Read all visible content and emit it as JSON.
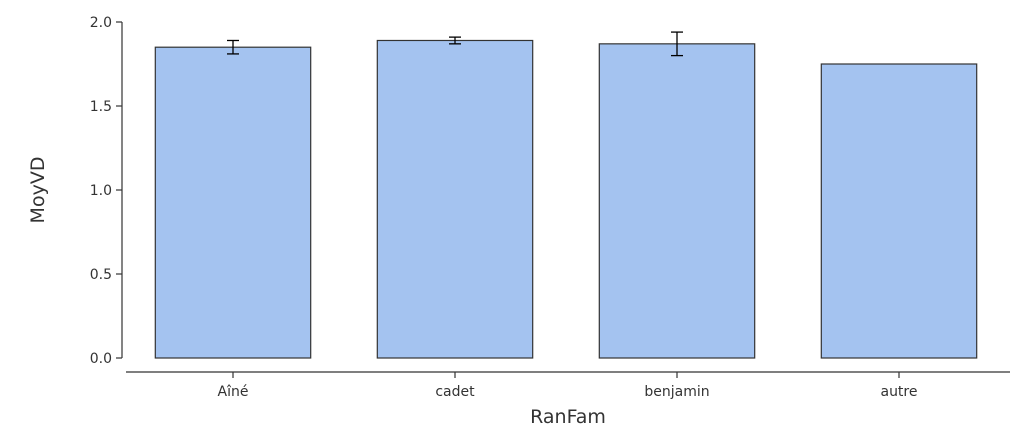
{
  "chart_data": {
    "type": "bar",
    "xlabel": "RanFam",
    "ylabel": "MoyVD",
    "categories": [
      "Aîné",
      "cadet",
      "benjamin",
      "autre"
    ],
    "values": [
      1.85,
      1.89,
      1.87,
      1.75
    ],
    "error_low": [
      1.81,
      1.87,
      1.8,
      null
    ],
    "error_high": [
      1.89,
      1.91,
      1.94,
      null
    ],
    "ylim": [
      0,
      2.0
    ],
    "yticks": [
      0.0,
      0.5,
      1.0,
      1.5,
      2.0
    ],
    "ytick_labels": [
      "0.0",
      "0.5",
      "1.0",
      "1.5",
      "2.0"
    ],
    "grid": false,
    "colors": {
      "bar_fill": "#a4c3f0",
      "bar_stroke": "#333333",
      "axis": "#333333",
      "error_bar": "#000000"
    }
  }
}
